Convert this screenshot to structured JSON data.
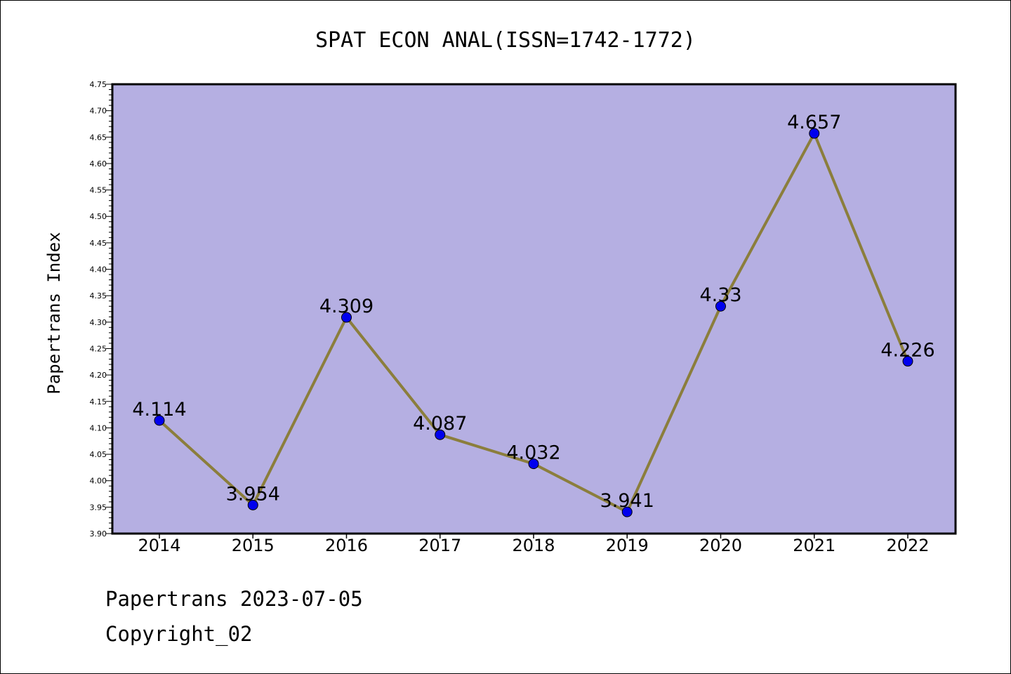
{
  "chart_data": {
    "type": "line",
    "title": "SPAT ECON ANAL(ISSN=1742-1772)",
    "xlabel": "",
    "ylabel": "Papertrans Index",
    "categories": [
      "2014",
      "2015",
      "2016",
      "2017",
      "2018",
      "2019",
      "2020",
      "2021",
      "2022"
    ],
    "values": [
      4.114,
      3.954,
      4.309,
      4.087,
      4.032,
      3.941,
      4.33,
      4.657,
      4.226
    ],
    "data_labels": [
      "4.114",
      "3.954",
      "4.309",
      "4.087",
      "4.032",
      "3.941",
      "4.33",
      "4.657",
      "4.226"
    ],
    "ylim": [
      3.9,
      4.75
    ],
    "yticks": [
      "3.90",
      "3.95",
      "4.00",
      "4.05",
      "4.10",
      "4.15",
      "4.20",
      "4.25",
      "4.30",
      "4.35",
      "4.40",
      "4.45",
      "4.50",
      "4.55",
      "4.60",
      "4.65",
      "4.70",
      "4.75"
    ],
    "grid": false,
    "colors": {
      "plot_background": "#b5afe2",
      "line": "#8b7e3c",
      "marker": "#0000ee"
    }
  },
  "footer": {
    "date_text": "Papertrans 2023-07-05",
    "copyright_text": "Copyright_02"
  }
}
